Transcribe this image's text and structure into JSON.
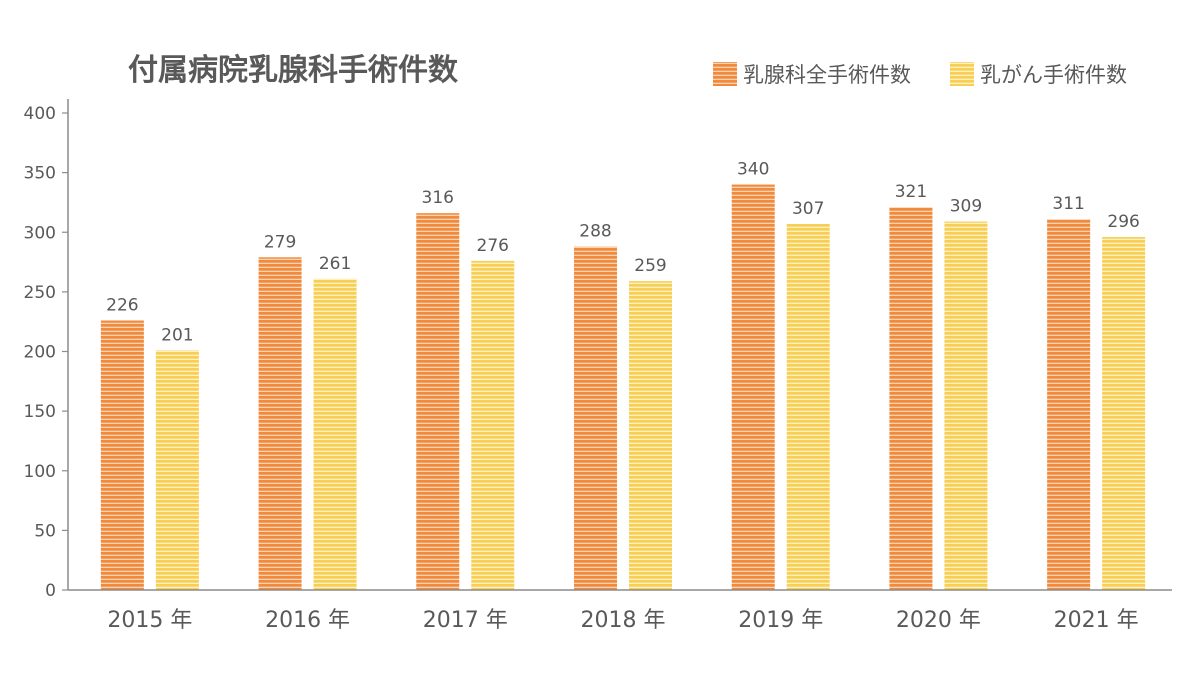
{
  "chart_data": {
    "type": "bar",
    "title": "付属病院乳腺科手術件数",
    "categories": [
      "2015 年",
      "2016 年",
      "2017 年",
      "2018 年",
      "2019 年",
      "2020 年",
      "2021 年"
    ],
    "series": [
      {
        "name": "乳腺科全手術件数",
        "values": [
          226,
          279,
          316,
          288,
          340,
          321,
          311
        ],
        "color": "#f08a3c"
      },
      {
        "name": "乳がん手術件数",
        "values": [
          201,
          261,
          276,
          259,
          307,
          309,
          296
        ],
        "color": "#f8cf55"
      }
    ],
    "ylim": [
      0,
      400
    ],
    "yticks": [
      0,
      50,
      100,
      150,
      200,
      250,
      300,
      350,
      400
    ],
    "xlabel": "",
    "ylabel": "",
    "grid": false,
    "legend": "top-right",
    "data_labels": true
  }
}
